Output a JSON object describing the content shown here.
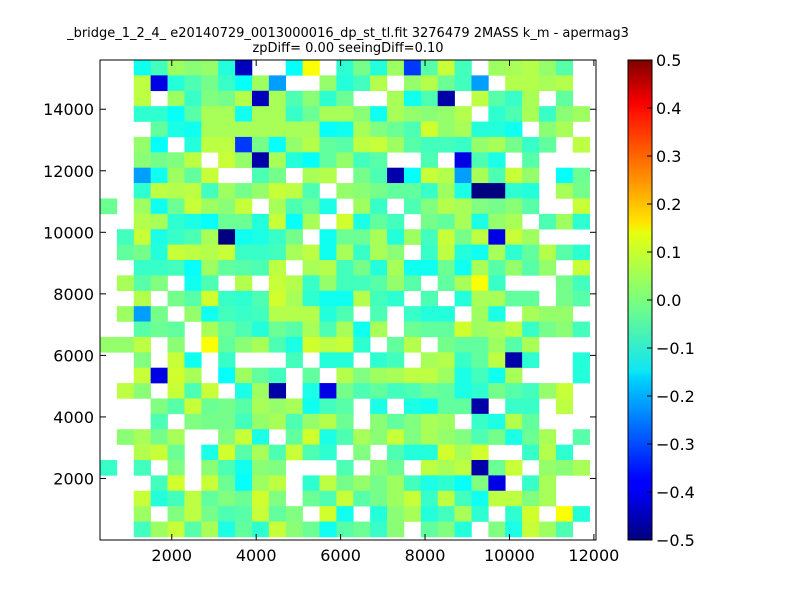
{
  "chart_data": {
    "type": "heatmap",
    "title_line1": "_bridge_1_2_4_ e20140729_0013000016_dp_st_tl.fit 3276479 2MASS k_m - apermag3",
    "title_line2": "zpDiff= 0.00 seeingDiff=0.10",
    "xlabel": "",
    "ylabel": "",
    "xlim": [
      300,
      12050
    ],
    "ylim": [
      0,
      15600
    ],
    "x_ticks": [
      2000,
      4000,
      6000,
      8000,
      10000,
      12000
    ],
    "y_ticks": [
      2000,
      4000,
      6000,
      8000,
      10000,
      12000,
      14000
    ],
    "x_tick_labels": [
      "2000",
      "4000",
      "6000",
      "8000",
      "10000",
      "12000"
    ],
    "y_tick_labels": [
      "2000",
      "4000",
      "6000",
      "8000",
      "10000",
      "12000",
      "14000"
    ],
    "grid": false,
    "colormap": "jet",
    "colorbar": {
      "range": [
        -0.5,
        0.5
      ],
      "ticks": [
        0.5,
        0.4,
        0.3,
        0.2,
        0.1,
        0.0,
        -0.1,
        -0.2,
        -0.3,
        -0.4,
        -0.5
      ],
      "tick_labels": [
        "0.5",
        "0.4",
        "0.3",
        "0.2",
        "0.1",
        "0.0",
        "−0.1",
        "−0.2",
        "−0.3",
        "−0.4",
        "−0.5"
      ]
    },
    "grid_x0": 300,
    "grid_y0": 0,
    "cell_width": 400,
    "cell_height": 500,
    "rows_from_top": [
      "........6...7.....C.....8...",
      "...B......9...........9.....",
      ".........6.......8..1.......",
      "......88.88..88..8.......8..",
      "......8888888........8.....8",
      "........C..............8....",
      ".........18..........B......",
      "..9.........8....1...98.....",
      "......................AA....",
      "..........8..........8......",
      "........................8...",
      "......8A........8......B....",
      "................8...........",
      ".................8....8.....",
      "......................7.....",
      "...........8...........8....",
      "..9.........................",
      "......8.....8.8.............",
      "......7..8...............8..",
      "........................1...",
      "...B........................",
      "..........1..B..............",
      ".........8............1.....",
      "..........8........8........",
      "..........................8.",
      ".....................8......",
      "......................1.....",
      ".......................B....",
      "..........................8.",
      ".....................8.....7",
      "......8....................."
    ],
    "cells": []
  }
}
